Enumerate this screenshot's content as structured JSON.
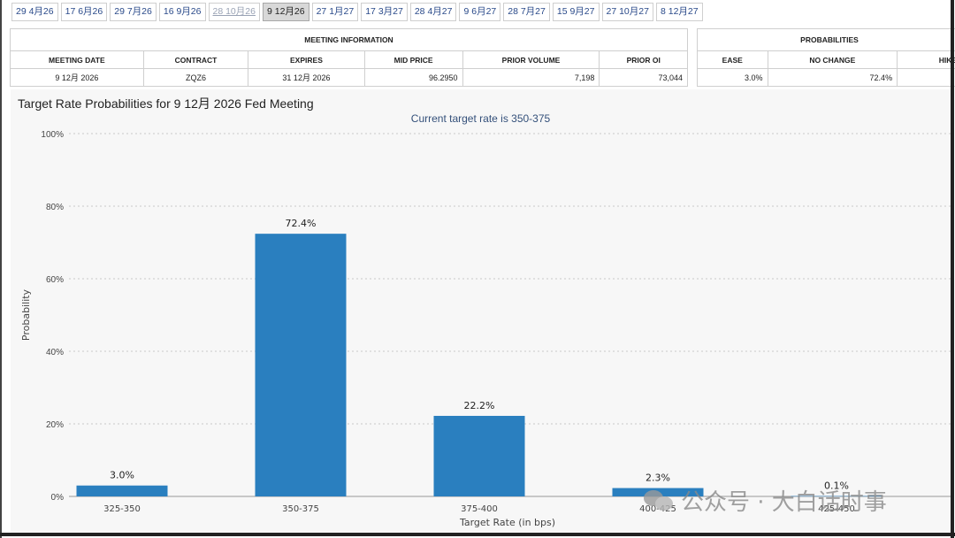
{
  "tabs": [
    {
      "label": "29 4月26",
      "state": "normal"
    },
    {
      "label": "17 6月26",
      "state": "normal"
    },
    {
      "label": "29 7月26",
      "state": "normal"
    },
    {
      "label": "16 9月26",
      "state": "normal"
    },
    {
      "label": "28 10月26",
      "state": "muted"
    },
    {
      "label": "9 12月26",
      "state": "active"
    },
    {
      "label": "27 1月27",
      "state": "normal"
    },
    {
      "label": "17 3月27",
      "state": "normal"
    },
    {
      "label": "28 4月27",
      "state": "normal"
    },
    {
      "label": "9 6月27",
      "state": "normal"
    },
    {
      "label": "28 7月27",
      "state": "normal"
    },
    {
      "label": "15 9月27",
      "state": "normal"
    },
    {
      "label": "27 10月27",
      "state": "normal"
    },
    {
      "label": "8 12月27",
      "state": "normal"
    }
  ],
  "meeting_info": {
    "group_title": "MEETING INFORMATION",
    "headers": [
      "MEETING DATE",
      "CONTRACT",
      "EXPIRES",
      "MID PRICE",
      "PRIOR VOLUME",
      "PRIOR OI"
    ],
    "row": [
      "9 12月 2026",
      "ZQZ6",
      "31 12月 2026",
      "96.2950",
      "7,198",
      "73,044"
    ]
  },
  "probabilities": {
    "group_title": "PROBABILITIES",
    "headers": [
      "EASE",
      "NO CHANGE",
      "HIKE"
    ],
    "row": [
      "3.0%",
      "72.4%",
      ""
    ]
  },
  "chart_data": {
    "type": "bar",
    "title": "Target Rate Probabilities for 9 12月 2026 Fed Meeting",
    "subtitle": "Current target rate is 350-375",
    "xlabel": "Target Rate (in bps)",
    "ylabel": "Probability",
    "categories": [
      "325-350",
      "350-375",
      "375-400",
      "400-425",
      "425-450"
    ],
    "values": [
      3.0,
      72.4,
      22.2,
      2.3,
      0.1
    ],
    "data_labels": [
      "3.0%",
      "72.4%",
      "22.2%",
      "2.3%",
      "0.1%"
    ],
    "yticks": [
      "0%",
      "20%",
      "40%",
      "60%",
      "80%",
      "100%"
    ],
    "ylim": [
      0,
      100
    ],
    "grid": true,
    "bar_color": "#2a7fbf"
  },
  "watermark": {
    "text": "公众号 · 大白话时事"
  }
}
